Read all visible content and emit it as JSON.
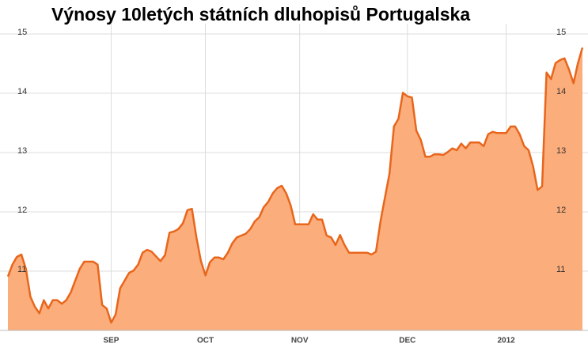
{
  "chart_data": {
    "type": "area",
    "title": "Výnosy 10letých státních dluhopisů Portugalska",
    "categories": [
      null,
      null,
      null,
      null,
      null,
      null,
      null,
      null,
      null,
      null,
      null,
      null,
      null,
      null,
      null,
      null,
      null,
      null,
      null,
      null,
      null,
      null,
      null,
      "SEP",
      null,
      null,
      null,
      null,
      null,
      null,
      null,
      null,
      null,
      null,
      null,
      null,
      null,
      null,
      null,
      null,
      null,
      null,
      null,
      null,
      "OCT",
      null,
      null,
      null,
      null,
      null,
      null,
      null,
      null,
      null,
      null,
      null,
      null,
      null,
      null,
      null,
      null,
      null,
      null,
      null,
      null,
      "NOV",
      null,
      null,
      null,
      null,
      null,
      null,
      null,
      null,
      null,
      null,
      null,
      null,
      null,
      null,
      null,
      null,
      null,
      null,
      null,
      null,
      null,
      null,
      null,
      "DEC",
      null,
      null,
      null,
      null,
      null,
      null,
      null,
      null,
      null,
      null,
      null,
      null,
      null,
      null,
      null,
      null,
      null,
      null,
      null,
      null,
      null,
      "2012",
      null,
      null,
      null,
      null,
      null,
      null,
      null,
      null,
      null,
      null,
      null,
      null,
      null,
      null,
      null,
      null,
      null
    ],
    "values": [
      10.91,
      11.11,
      11.24,
      11.28,
      11.04,
      10.57,
      10.4,
      10.29,
      10.51,
      10.37,
      10.51,
      10.51,
      10.45,
      10.51,
      10.64,
      10.84,
      11.04,
      11.16,
      11.16,
      11.16,
      11.11,
      10.43,
      10.37,
      10.13,
      10.27,
      10.71,
      10.84,
      10.97,
      11.01,
      11.11,
      11.31,
      11.36,
      11.33,
      11.25,
      11.17,
      11.27,
      11.65,
      11.67,
      11.71,
      11.81,
      12.03,
      12.05,
      11.57,
      11.17,
      10.93,
      11.15,
      11.23,
      11.23,
      11.2,
      11.31,
      11.47,
      11.57,
      11.6,
      11.63,
      11.71,
      11.84,
      11.91,
      12.08,
      12.17,
      12.31,
      12.4,
      12.44,
      12.31,
      12.11,
      11.79,
      11.79,
      11.79,
      11.79,
      11.96,
      11.87,
      11.87,
      11.6,
      11.57,
      11.44,
      11.61,
      11.44,
      11.31,
      11.31,
      11.31,
      11.31,
      11.31,
      11.28,
      11.33,
      11.84,
      12.24,
      12.64,
      13.44,
      13.57,
      14.01,
      13.95,
      13.93,
      13.37,
      13.21,
      12.93,
      12.93,
      12.97,
      12.97,
      12.96,
      13.01,
      13.07,
      13.04,
      13.15,
      13.07,
      13.17,
      13.17,
      13.17,
      13.11,
      13.31,
      13.35,
      13.33,
      13.33,
      13.33,
      13.44,
      13.44,
      13.31,
      13.11,
      13.04,
      12.77,
      12.37,
      12.43,
      14.35,
      14.24,
      14.51,
      14.56,
      14.59,
      14.4,
      14.17,
      14.51,
      14.77
    ],
    "color": "#e8661c",
    "fill": "#fbad7b",
    "ylim": [
      10,
      15
    ],
    "yticks": [
      11,
      12,
      13,
      14,
      15
    ],
    "grid": true
  }
}
